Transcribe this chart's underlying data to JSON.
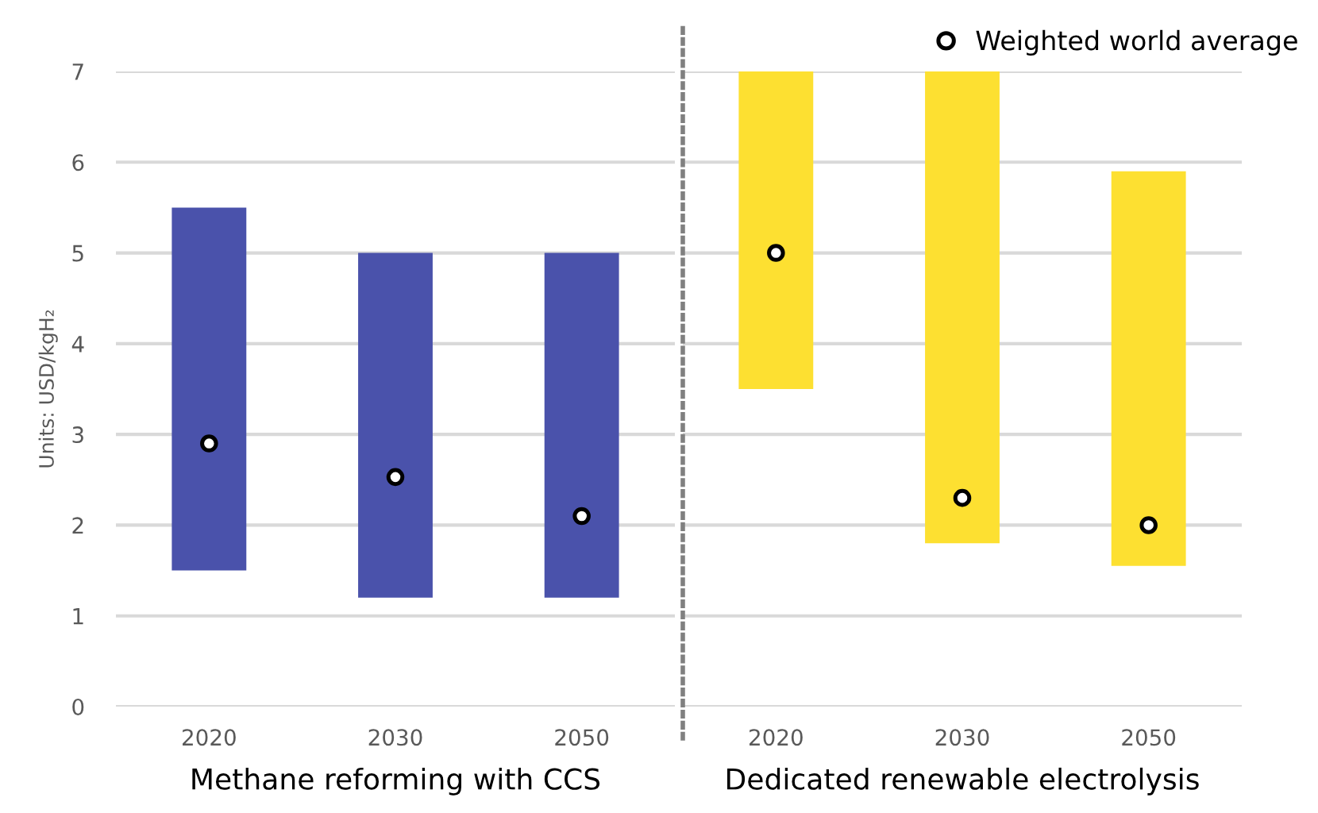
{
  "chart_data": [
    {
      "type": "bar",
      "xlabel": "Methane reforming with CCS",
      "ylabel": "Units: USD/kgH₂",
      "categories": [
        "2020",
        "2030",
        "2050"
      ],
      "ylim": [
        0,
        7
      ],
      "yticks": [
        0,
        1,
        2,
        3,
        4,
        5,
        6,
        7
      ],
      "grid": "y",
      "series": [
        {
          "color": "#4a52ab",
          "base": [
            1.5,
            1.2,
            1.2
          ],
          "values": [
            4.0,
            3.8,
            3.8
          ]
        },
        {
          "type": "scatter",
          "color": "#ffffff",
          "marker": "circle",
          "values": [
            2.9,
            2.53,
            2.1
          ]
        }
      ]
    },
    {
      "type": "bar",
      "xlabel": "Dedicated renewable electrolysis",
      "categories": [
        "2020",
        "2030",
        "2050"
      ],
      "ylim": [
        0,
        7
      ],
      "yticks": [
        0,
        1,
        2,
        3,
        4,
        5,
        6,
        7
      ],
      "grid": "y",
      "legend": "top right",
      "tick_labels": "x",
      "series": [
        {
          "color": "#fde031",
          "base": [
            3.5,
            1.8,
            1.55
          ],
          "values": [
            3.5,
            5.2,
            4.35
          ]
        },
        {
          "type": "scatter",
          "name": "Weighted world average",
          "color": "#ffffff",
          "marker": "circle",
          "values": [
            5.0,
            2.3,
            2.0
          ]
        }
      ]
    }
  ]
}
